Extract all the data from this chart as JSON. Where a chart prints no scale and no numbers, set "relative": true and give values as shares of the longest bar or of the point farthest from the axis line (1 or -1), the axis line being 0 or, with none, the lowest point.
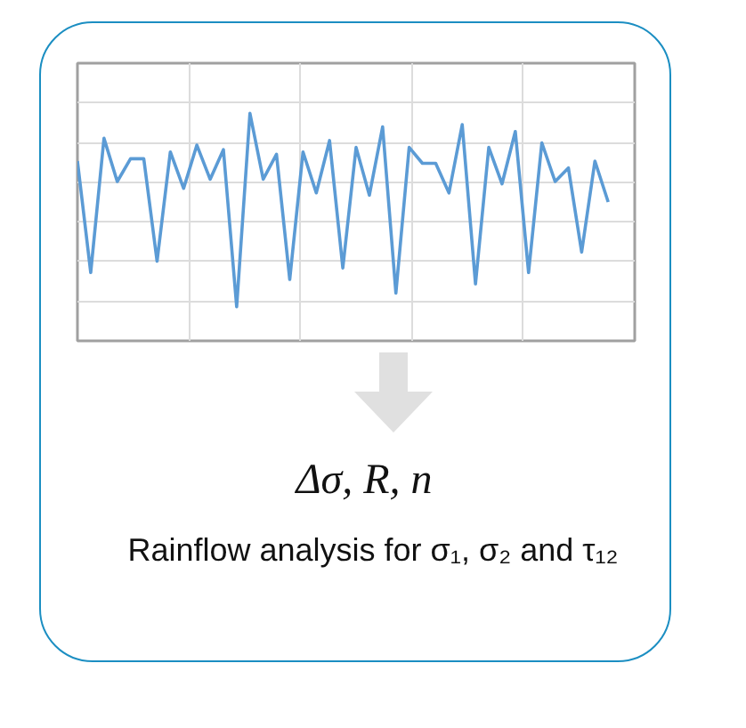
{
  "chart_data": {
    "type": "line",
    "relative": true,
    "grid": true,
    "color": "#5b9bd5",
    "categories": [
      null,
      null,
      null,
      null,
      null,
      null,
      null,
      null,
      null,
      null,
      null,
      null,
      null,
      null,
      null,
      null,
      null,
      null,
      null,
      null,
      null,
      null,
      null,
      null,
      null,
      null,
      null,
      null,
      null,
      null,
      null,
      null,
      null,
      null,
      null,
      null,
      null,
      null,
      null,
      null,
      null
    ],
    "values": [
      0.79,
      0.3,
      0.89,
      0.7,
      0.8,
      0.8,
      0.35,
      0.83,
      0.67,
      0.86,
      0.71,
      0.84,
      0.15,
      1,
      0.71,
      0.82,
      0.27,
      0.83,
      0.65,
      0.88,
      0.32,
      0.85,
      0.64,
      0.94,
      0.21,
      0.85,
      0.78,
      0.78,
      0.65,
      0.95,
      0.25,
      0.85,
      0.69,
      0.92,
      0.3,
      0.87,
      0.7,
      0.76,
      0.39,
      0.79,
      0.61
    ],
    "annotations": [
      "Δσ, R, n",
      "Rainflow analysis for σ₁, σ₂ and τ₁₂"
    ]
  }
}
